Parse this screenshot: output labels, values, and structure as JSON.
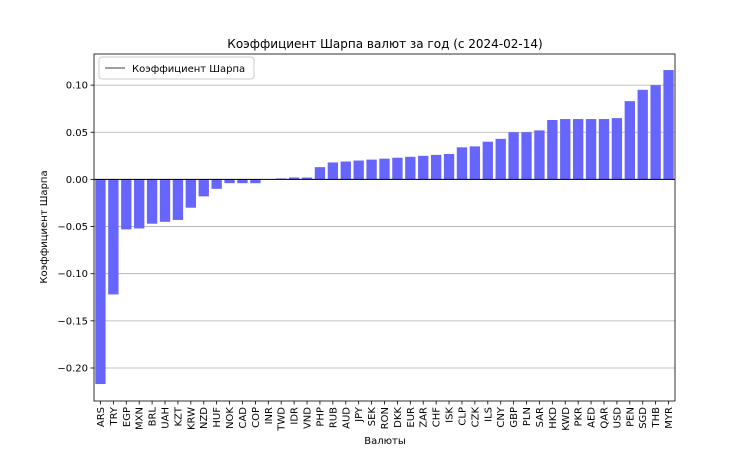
{
  "chart_data": {
    "type": "bar",
    "title": "Коэффициент Шарпа валют за год (с 2024-02-14)",
    "xlabel": "Валюты",
    "ylabel": "Коэффициент Шарпа",
    "legend": {
      "label": "Коэффициент Шарпа",
      "position": "top-left"
    },
    "bar_color": "#6666ff",
    "grid": "y",
    "ylim": [
      -0.235,
      0.133
    ],
    "yticks": [
      -0.2,
      -0.15,
      -0.1,
      -0.05,
      0.0,
      0.05,
      0.1
    ],
    "ytick_labels": [
      "−0.20",
      "−0.15",
      "−0.10",
      "−0.05",
      "0.00",
      "0.05",
      "0.10"
    ],
    "categories": [
      "ARS",
      "TRY",
      "EGP",
      "MXN",
      "BRL",
      "UAH",
      "KZT",
      "KRW",
      "NZD",
      "HUF",
      "NOK",
      "CAD",
      "COP",
      "INR",
      "TWD",
      "IDR",
      "VND",
      "PHP",
      "RUB",
      "AUD",
      "JPY",
      "SEK",
      "RON",
      "DKK",
      "EUR",
      "ZAR",
      "CHF",
      "ISK",
      "CLP",
      "CZK",
      "ILS",
      "CNY",
      "GBP",
      "PLN",
      "SAR",
      "HKD",
      "KWD",
      "PKR",
      "AED",
      "QAR",
      "USD",
      "PEN",
      "SGD",
      "THB",
      "MYR"
    ],
    "values": [
      -0.217,
      -0.122,
      -0.053,
      -0.052,
      -0.047,
      -0.045,
      -0.043,
      -0.03,
      -0.018,
      -0.01,
      -0.004,
      -0.004,
      -0.004,
      0.0,
      0.001,
      0.002,
      0.002,
      0.013,
      0.018,
      0.019,
      0.02,
      0.021,
      0.022,
      0.023,
      0.024,
      0.025,
      0.026,
      0.027,
      0.034,
      0.035,
      0.04,
      0.043,
      0.05,
      0.05,
      0.052,
      0.063,
      0.064,
      0.064,
      0.064,
      0.064,
      0.065,
      0.083,
      0.095,
      0.1,
      0.116
    ]
  }
}
